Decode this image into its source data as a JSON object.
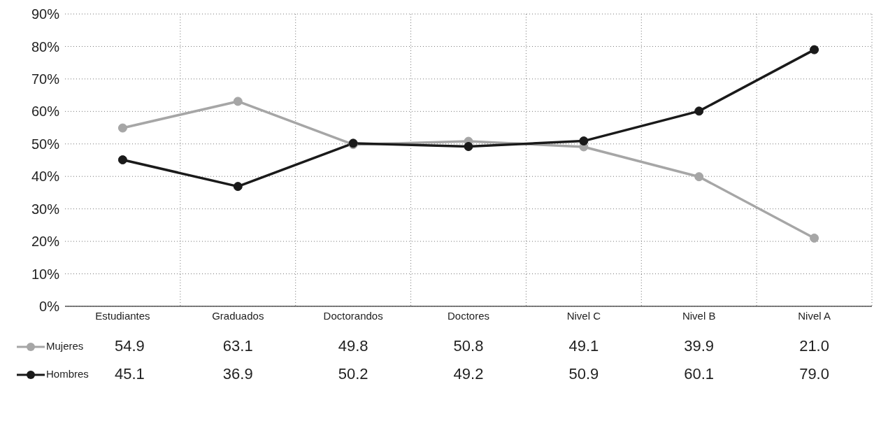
{
  "chart_data": {
    "type": "line",
    "categories": [
      "Estudiantes",
      "Graduados",
      "Doctorandos",
      "Doctores",
      "Nivel C",
      "Nivel B",
      "Nivel A"
    ],
    "series": [
      {
        "name": "Mujeres",
        "color": "#a6a6a6",
        "values": [
          54.9,
          63.1,
          49.8,
          50.8,
          49.1,
          39.9,
          21.0
        ],
        "value_labels": [
          "54.9",
          "63.1",
          "49.8",
          "50.8",
          "49.1",
          "39.9",
          "21.0"
        ]
      },
      {
        "name": "Hombres",
        "color": "#1a1a1a",
        "values": [
          45.1,
          36.9,
          50.2,
          49.2,
          50.9,
          60.1,
          79.0
        ],
        "value_labels": [
          "45.1",
          "36.9",
          "50.2",
          "49.2",
          "50.9",
          "60.1",
          "79.0"
        ]
      }
    ],
    "ylim": [
      0,
      90
    ],
    "yticks": [
      {
        "value": 0,
        "label": "0%"
      },
      {
        "value": 10,
        "label": "10%"
      },
      {
        "value": 20,
        "label": "20%"
      },
      {
        "value": 30,
        "label": "30%"
      },
      {
        "value": 40,
        "label": "40%"
      },
      {
        "value": 50,
        "label": "50%"
      },
      {
        "value": 60,
        "label": "60%"
      },
      {
        "value": 70,
        "label": "70%"
      },
      {
        "value": 80,
        "label": "80%"
      },
      {
        "value": 90,
        "label": "90%"
      }
    ],
    "grid": true,
    "legend": "bottom left",
    "marker": "circle",
    "line_style": "solid"
  }
}
